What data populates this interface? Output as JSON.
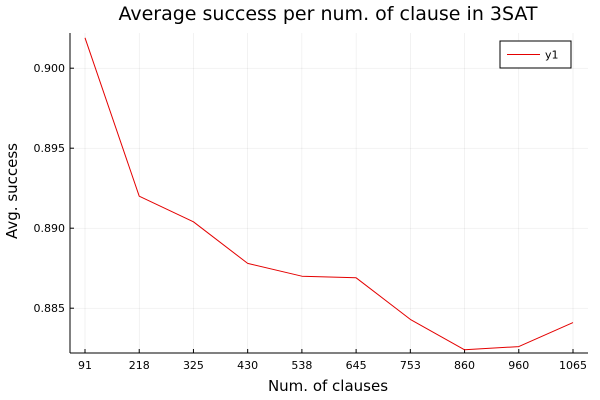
{
  "chart_data": {
    "type": "line",
    "title": "Average success per num. of clause in 3SAT",
    "xlabel": "Num. of clauses",
    "ylabel": "Avg. success",
    "categories": [
      "91",
      "218",
      "325",
      "430",
      "538",
      "645",
      "753",
      "860",
      "960",
      "1065"
    ],
    "series": [
      {
        "name": "y1",
        "color": "#e40000",
        "values": [
          0.9019,
          0.892,
          0.8904,
          0.8878,
          0.887,
          0.8869,
          0.8843,
          0.8824,
          0.8826,
          0.8841
        ]
      }
    ],
    "ylim": [
      0.8822,
      0.9022
    ],
    "yticks": [
      0.885,
      0.89,
      0.895,
      0.9
    ],
    "ytick_labels": [
      "0.885",
      "0.890",
      "0.895",
      "0.900"
    ],
    "grid": true,
    "legend_position": "top-right"
  }
}
